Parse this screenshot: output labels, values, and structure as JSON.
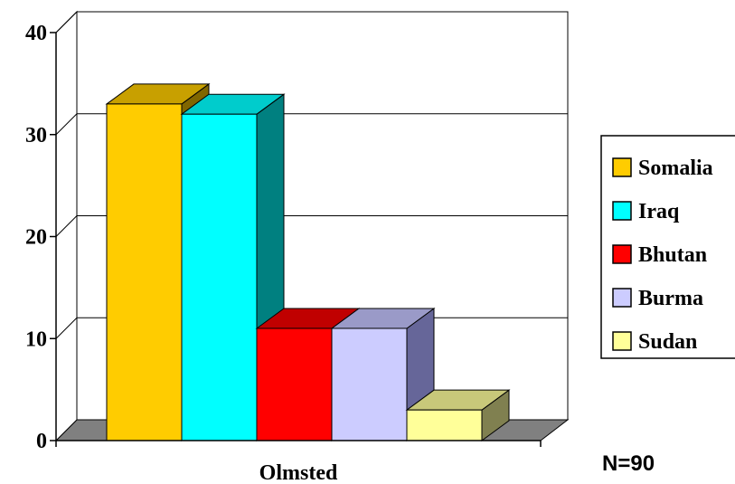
{
  "chart_data": {
    "type": "bar",
    "style": "3d-clustered-column",
    "categories": [
      "Olmsted"
    ],
    "series": [
      {
        "name": "Somalia",
        "values": [
          33
        ],
        "color": "#FFCC00",
        "top": "#C8A000",
        "side": "#806600"
      },
      {
        "name": "Iraq",
        "values": [
          32
        ],
        "color": "#00FFFF",
        "top": "#00CCCC",
        "side": "#008080"
      },
      {
        "name": "Bhutan",
        "values": [
          11
        ],
        "color": "#FF0000",
        "top": "#C00000",
        "side": "#800000"
      },
      {
        "name": "Burma",
        "values": [
          11
        ],
        "color": "#CCCCFF",
        "top": "#9A9AC8",
        "side": "#666699"
      },
      {
        "name": "Sudan",
        "values": [
          3
        ],
        "color": "#FFFF99",
        "top": "#C8C87A",
        "side": "#808050"
      }
    ],
    "ylim": [
      0,
      40
    ],
    "yticks": [
      0,
      10,
      20,
      30,
      40
    ],
    "grid": true,
    "legend_position": "right",
    "annotation": "N=90"
  }
}
